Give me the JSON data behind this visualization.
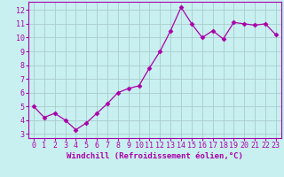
{
  "x": [
    0,
    1,
    2,
    3,
    4,
    5,
    6,
    7,
    8,
    9,
    10,
    11,
    12,
    13,
    14,
    15,
    16,
    17,
    18,
    19,
    20,
    21,
    22,
    23
  ],
  "y": [
    5.0,
    4.2,
    4.5,
    4.0,
    3.3,
    3.8,
    4.5,
    5.2,
    6.0,
    6.3,
    6.5,
    7.8,
    9.0,
    10.5,
    12.2,
    11.0,
    10.0,
    10.5,
    9.9,
    11.1,
    11.0,
    10.9,
    11.0,
    10.2
  ],
  "line_color": "#aa00aa",
  "marker": "D",
  "marker_size": 2.5,
  "bg_color": "#c8f0f0",
  "grid_color": "#aacccc",
  "xlabel": "Windchill (Refroidissement éolien,°C)",
  "tick_color": "#aa00aa",
  "ylim": [
    2.7,
    12.6
  ],
  "yticks": [
    3,
    4,
    5,
    6,
    7,
    8,
    9,
    10,
    11,
    12
  ],
  "xlim": [
    -0.5,
    23.5
  ],
  "xticks": [
    0,
    1,
    2,
    3,
    4,
    5,
    6,
    7,
    8,
    9,
    10,
    11,
    12,
    13,
    14,
    15,
    16,
    17,
    18,
    19,
    20,
    21,
    22,
    23
  ],
  "spine_color": "#aa00aa",
  "tick_fontsize": 6.0,
  "xlabel_fontsize": 6.5
}
